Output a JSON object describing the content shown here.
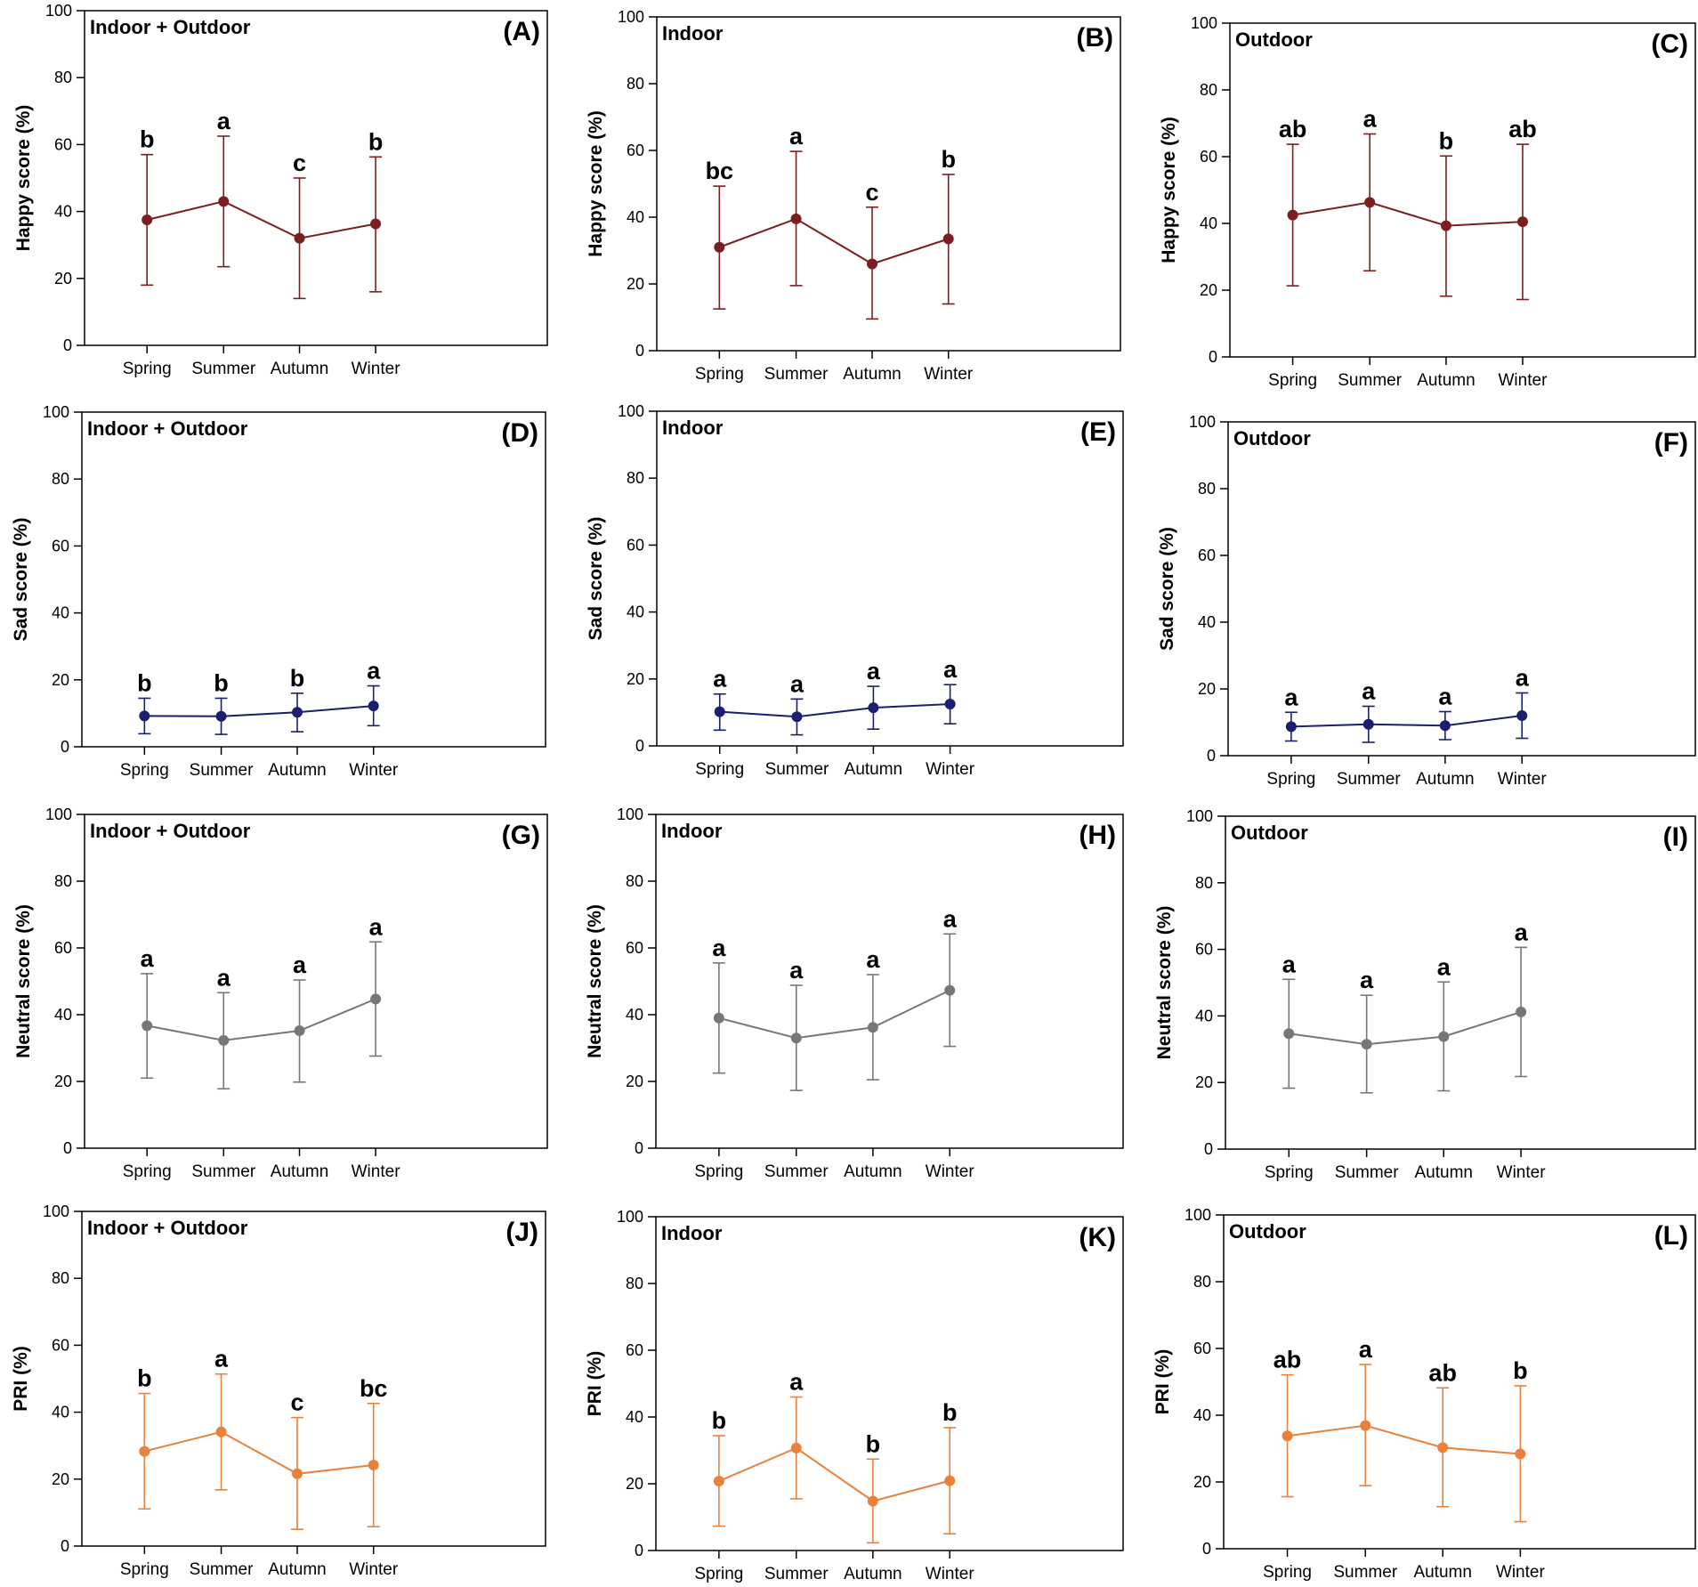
{
  "categories": [
    "Spring",
    "Summer",
    "Autumn",
    "Winter"
  ],
  "yticks": [
    "0",
    "20",
    "40",
    "60",
    "80",
    "100"
  ],
  "colors": {
    "happy": "#7a1f1f",
    "sad": "#1a1f6e",
    "neutral": "#777777",
    "pri": "#e8823a"
  },
  "chart_data": [
    {
      "id": "A",
      "type": "line",
      "panel_label": "(A)",
      "group": "Indoor + Outdoor",
      "ylabel": "Happy score (%)",
      "color_key": "happy",
      "ylim": [
        0,
        100
      ],
      "values": [
        37.5,
        43,
        32,
        36.3
      ],
      "err_low": [
        18,
        23.5,
        14,
        16
      ],
      "err_high": [
        57,
        62.5,
        50,
        56.3
      ],
      "letters": [
        "b",
        "a",
        "c",
        "b"
      ]
    },
    {
      "id": "B",
      "type": "line",
      "panel_label": "(B)",
      "group": "Indoor",
      "ylabel": "Happy score (%)",
      "color_key": "happy",
      "ylim": [
        0,
        100
      ],
      "values": [
        31,
        39.5,
        26,
        33.5
      ],
      "err_low": [
        12.5,
        19.5,
        9.5,
        14
      ],
      "err_high": [
        49.3,
        59.7,
        43,
        52.8
      ],
      "letters": [
        "bc",
        "a",
        "c",
        "b"
      ]
    },
    {
      "id": "C",
      "type": "line",
      "panel_label": "(C)",
      "group": "Outdoor",
      "ylabel": "Happy score (%)",
      "color_key": "happy",
      "ylim": [
        0,
        100
      ],
      "values": [
        42.5,
        46.3,
        39.3,
        40.5
      ],
      "err_low": [
        21.3,
        25.8,
        18.2,
        17.2
      ],
      "err_high": [
        63.7,
        66.8,
        60.2,
        63.7
      ],
      "letters": [
        "ab",
        "a",
        "b",
        "ab"
      ]
    },
    {
      "id": "D",
      "type": "line",
      "panel_label": "(D)",
      "group": "Indoor + Outdoor",
      "ylabel": "Sad score (%)",
      "color_key": "sad",
      "ylim": [
        0,
        100
      ],
      "values": [
        9.2,
        9.1,
        10.3,
        12.2
      ],
      "err_low": [
        3.9,
        3.7,
        4.5,
        6.3
      ],
      "err_high": [
        14.5,
        14.5,
        16,
        18.2
      ],
      "letters": [
        "b",
        "b",
        "b",
        "a"
      ]
    },
    {
      "id": "E",
      "type": "line",
      "panel_label": "(E)",
      "group": "Indoor",
      "ylabel": "Sad score (%)",
      "color_key": "sad",
      "ylim": [
        0,
        100
      ],
      "values": [
        10.2,
        8.7,
        11.4,
        12.5
      ],
      "err_low": [
        4.7,
        3.3,
        5,
        6.6
      ],
      "err_high": [
        15.5,
        14,
        17.8,
        18.3
      ],
      "letters": [
        "a",
        "a",
        "a",
        "a"
      ]
    },
    {
      "id": "F",
      "type": "line",
      "panel_label": "(F)",
      "group": "Outdoor",
      "ylabel": "Sad score (%)",
      "color_key": "sad",
      "ylim": [
        0,
        100
      ],
      "values": [
        8.7,
        9.4,
        9,
        12
      ],
      "err_low": [
        4.4,
        4,
        4.8,
        5.2
      ],
      "err_high": [
        13,
        14.8,
        13.2,
        18.8
      ],
      "letters": [
        "a",
        "a",
        "a",
        "a"
      ]
    },
    {
      "id": "G",
      "type": "line",
      "panel_label": "(G)",
      "group": "Indoor + Outdoor",
      "ylabel": "Neutral score (%)",
      "color_key": "neutral",
      "ylim": [
        0,
        100
      ],
      "values": [
        36.7,
        32.3,
        35.2,
        44.7
      ],
      "err_low": [
        21,
        17.8,
        19.8,
        27.6
      ],
      "err_high": [
        52.3,
        46.6,
        50.4,
        61.8
      ],
      "letters": [
        "a",
        "a",
        "a",
        "a"
      ]
    },
    {
      "id": "H",
      "type": "line",
      "panel_label": "(H)",
      "group": "Indoor",
      "ylabel": "Neutral score (%)",
      "color_key": "neutral",
      "ylim": [
        0,
        100
      ],
      "values": [
        39,
        33,
        36.2,
        47.3
      ],
      "err_low": [
        22.5,
        17.3,
        20.5,
        30.5
      ],
      "err_high": [
        55.5,
        48.8,
        52,
        64.2
      ],
      "letters": [
        "a",
        "a",
        "a",
        "a"
      ]
    },
    {
      "id": "I",
      "type": "line",
      "panel_label": "(I)",
      "group": "Outdoor",
      "ylabel": "Neutral score (%)",
      "color_key": "neutral",
      "ylim": [
        0,
        100
      ],
      "values": [
        34.7,
        31.5,
        33.8,
        41.2
      ],
      "err_low": [
        18.3,
        16.9,
        17.5,
        21.8
      ],
      "err_high": [
        51,
        46.2,
        50.2,
        60.6
      ],
      "letters": [
        "a",
        "a",
        "a",
        "a"
      ]
    },
    {
      "id": "J",
      "type": "line",
      "panel_label": "(J)",
      "group": "Indoor + Outdoor",
      "ylabel": "PRI (%)",
      "color_key": "pri",
      "ylim": [
        0,
        100
      ],
      "values": [
        28.3,
        34.1,
        21.6,
        24.2
      ],
      "err_low": [
        11.1,
        16.8,
        5,
        5.8
      ],
      "err_high": [
        45.6,
        51.4,
        38.4,
        42.6
      ],
      "letters": [
        "b",
        "a",
        "c",
        "bc"
      ]
    },
    {
      "id": "K",
      "type": "line",
      "panel_label": "(K)",
      "group": "Indoor",
      "ylabel": "PRI (%)",
      "color_key": "pri",
      "ylim": [
        0,
        100
      ],
      "values": [
        20.8,
        30.7,
        14.8,
        20.9
      ],
      "err_low": [
        7.3,
        15.5,
        2.3,
        5
      ],
      "err_high": [
        34.4,
        46,
        27.4,
        36.8
      ],
      "letters": [
        "b",
        "a",
        "b",
        "b"
      ]
    },
    {
      "id": "L",
      "type": "line",
      "panel_label": "(L)",
      "group": "Outdoor",
      "ylabel": "PRI (%)",
      "color_key": "pri",
      "ylim": [
        0,
        100
      ],
      "values": [
        33.8,
        36.9,
        30.3,
        28.4
      ],
      "err_low": [
        15.6,
        18.9,
        12.6,
        8.1
      ],
      "err_high": [
        52.1,
        55.2,
        48.2,
        48.8
      ],
      "letters": [
        "ab",
        "a",
        "ab",
        "b"
      ]
    }
  ]
}
